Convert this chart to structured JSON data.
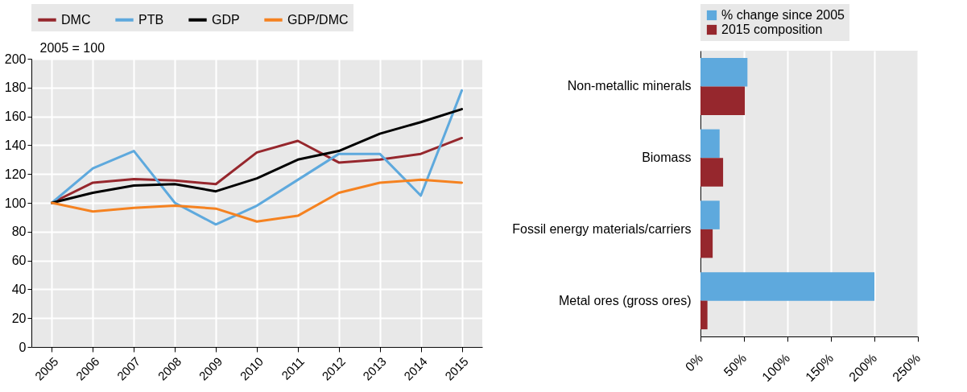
{
  "chart_data": [
    {
      "type": "line",
      "ylabel": "2005 = 100",
      "categories": [
        "2005",
        "2006",
        "2007",
        "2008",
        "2009",
        "2010",
        "2011",
        "2012",
        "2013",
        "2014",
        "2015"
      ],
      "series": [
        {
          "name": "DMC",
          "color": "#96272d",
          "values": [
            100,
            114,
            116.5,
            115.5,
            113,
            135,
            143,
            128,
            130,
            134,
            145
          ]
        },
        {
          "name": "PTB",
          "color": "#5ea9dd",
          "values": [
            100,
            124,
            136,
            100,
            85,
            98,
            116,
            134,
            134,
            105,
            178
          ]
        },
        {
          "name": "GDP",
          "color": "#000000",
          "values": [
            100,
            107,
            112,
            113,
            108,
            117,
            130,
            136,
            148,
            156,
            165
          ]
        },
        {
          "name": "GDP/DMC",
          "color": "#f58220",
          "values": [
            100,
            94,
            96.5,
            98,
            96,
            87,
            91,
            107,
            114,
            116,
            114
          ]
        }
      ],
      "ylim": [
        0,
        200
      ],
      "yticks": [
        0,
        20,
        40,
        60,
        80,
        100,
        120,
        140,
        160,
        180,
        200
      ],
      "grid": true,
      "legend": "top"
    },
    {
      "type": "bar",
      "orientation": "horizontal",
      "categories": [
        "Non-metallic minerals",
        "Biomass",
        "Fossil energy materials/carriers",
        "Metal ores (gross ores)"
      ],
      "series": [
        {
          "name": "% change since 2005",
          "color": "#5ea9dd",
          "values": [
            54,
            22,
            22,
            200
          ]
        },
        {
          "name": "2015 composition",
          "color": "#96272d",
          "values": [
            51,
            26,
            14,
            8
          ]
        }
      ],
      "xlim": [
        0,
        250
      ],
      "xticks": [
        {
          "value": 0,
          "label": "0%"
        },
        {
          "value": 50,
          "label": "50%"
        },
        {
          "value": 100,
          "label": "100%"
        },
        {
          "value": 150,
          "label": "150%"
        },
        {
          "value": 200,
          "label": "200%"
        },
        {
          "value": 250,
          "label": "250%"
        }
      ],
      "grid": true,
      "legend": "top"
    }
  ]
}
